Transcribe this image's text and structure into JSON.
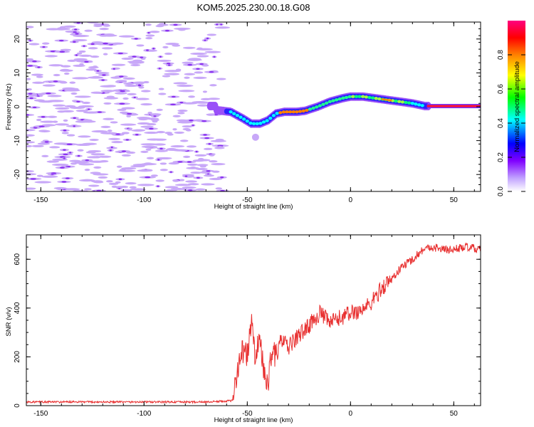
{
  "title": "KOM5.2025.230.00.18.G08",
  "chart_data": [
    {
      "type": "heatmap",
      "title": "KOM5.2025.230.00.18.G08",
      "xlabel": "Height of straight line (km)",
      "ylabel": "Frequency (Hz)",
      "xlim": [
        -157,
        63
      ],
      "ylim": [
        -25,
        25
      ],
      "x_ticks": [
        -150,
        -100,
        -50,
        0,
        50
      ],
      "y_ticks": [
        -20,
        -10,
        0,
        10,
        20
      ],
      "trace": {
        "x": [
          -65,
          -58,
          -52,
          -48,
          -44,
          -40,
          -36,
          -32,
          -26,
          -22,
          -16,
          -10,
          -4,
          0,
          6,
          12,
          18,
          24,
          30,
          36,
          63
        ],
        "y": [
          -1,
          -1.5,
          -3.5,
          -5,
          -5,
          -4,
          -2,
          -1.5,
          -1.5,
          -1.2,
          0,
          1.5,
          2.5,
          3,
          3,
          2.5,
          2,
          1.5,
          1,
          0.2,
          0.2
        ]
      },
      "colorbar": {
        "label": "Normalized spectral amplitude",
        "ticks": [
          0.0,
          0.2,
          0.4,
          0.6,
          0.8
        ],
        "tick_labels": [
          "0.0",
          "0.2",
          "0.4",
          "0.6",
          "0.8"
        ],
        "colors": [
          "#ffffff",
          "#c0a0ff",
          "#8000ff",
          "#0000ff",
          "#00ffff",
          "#00ff00",
          "#ffff00",
          "#ff8000",
          "#ff0000",
          "#ff0080"
        ]
      }
    },
    {
      "type": "line",
      "xlabel": "Height of straight line (km)",
      "ylabel": "SNR (v/v)",
      "xlim": [
        -157,
        63
      ],
      "ylim": [
        0,
        700
      ],
      "x_ticks": [
        -150,
        -100,
        -50,
        0,
        50
      ],
      "y_ticks": [
        0,
        200,
        400,
        600
      ],
      "series": [
        {
          "name": "SNR",
          "color": "#e83030",
          "x": [
            -157,
            -70,
            -57,
            -55,
            -52,
            -50,
            -48,
            -46,
            -44,
            -42,
            -40,
            -38,
            -36,
            -34,
            -30,
            -26,
            -20,
            -15,
            -10,
            -5,
            0,
            5,
            10,
            15,
            20,
            25,
            30,
            35,
            40,
            45,
            50,
            55,
            63
          ],
          "y": [
            15,
            15,
            20,
            150,
            230,
            200,
            350,
            180,
            300,
            120,
            90,
            240,
            200,
            270,
            240,
            280,
            330,
            380,
            340,
            360,
            380,
            390,
            420,
            480,
            520,
            570,
            600,
            640,
            650,
            640,
            640,
            650,
            640
          ]
        }
      ]
    }
  ]
}
